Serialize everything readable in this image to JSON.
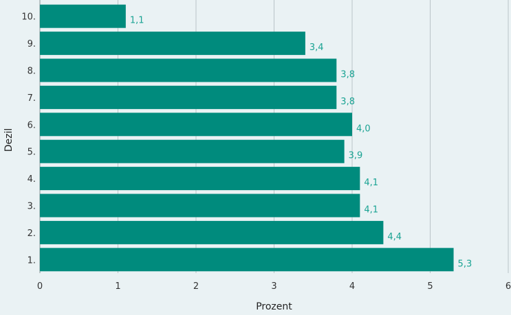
{
  "chart_data": {
    "type": "bar",
    "orientation": "horizontal",
    "title": "",
    "xlabel": "Prozent",
    "ylabel": "Dezil",
    "categories": [
      "1.",
      "2.",
      "3.",
      "4.",
      "5.",
      "6.",
      "7.",
      "8.",
      "9.",
      "10."
    ],
    "values": [
      5.3,
      4.4,
      4.1,
      4.1,
      3.9,
      4.0,
      3.8,
      3.8,
      3.4,
      1.1
    ],
    "value_labels": [
      "5,3",
      "4,4",
      "4,1",
      "4,1",
      "3,9",
      "4,0",
      "3,8",
      "3,8",
      "3,4",
      "1,1"
    ],
    "xlim": [
      0,
      6
    ],
    "xticks": [
      "0",
      "1",
      "2",
      "3",
      "4",
      "5",
      "6"
    ],
    "grid": "vertical",
    "colors": {
      "background": "#eaf2f4",
      "bar": "#008b7d",
      "value_label": "#1aa393",
      "gridline": "#b9c4c7"
    }
  }
}
